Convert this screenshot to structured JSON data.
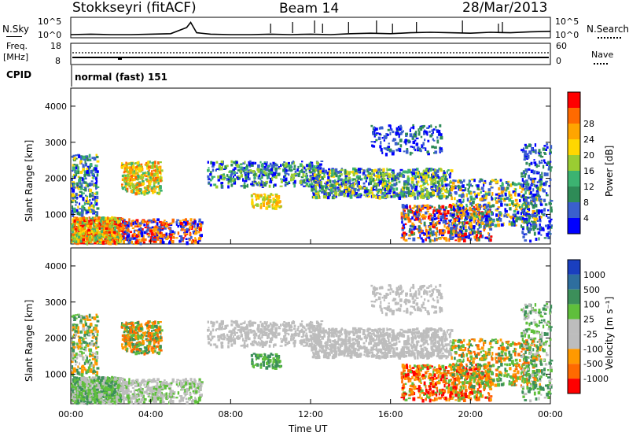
{
  "header": {
    "station": "Stokkseyri (fitACF)",
    "beam": "Beam 14",
    "date": "28/Mar/2013"
  },
  "noise_panel": {
    "left_label": "N.Sky",
    "right_label": "N.Search",
    "left_ticks": [
      "10^5",
      "10^0"
    ],
    "right_ticks": [
      "10^5",
      "10^0"
    ]
  },
  "freq_panel": {
    "left_label_line1": "Freq.",
    "left_label_line2": "[MHz]",
    "left_ticks": [
      "18",
      "8"
    ],
    "right_ticks": [
      "60",
      "0"
    ],
    "right_label": "Nave"
  },
  "cpid_panel": {
    "label": "CPID",
    "mode_text": "normal (fast) 151"
  },
  "x_axis": {
    "title": "Time UT",
    "ticks": [
      "00:00",
      "04:00",
      "08:00",
      "12:00",
      "16:00",
      "20:00",
      "00:00"
    ]
  },
  "colors": {
    "power_scale": [
      "#0000ff",
      "#3a5fcd",
      "#2e8b57",
      "#3cb371",
      "#9acd32",
      "#ffd700",
      "#ffa500",
      "#ff6a00",
      "#ff0000"
    ],
    "velocity_scale": [
      "#1a3fbf",
      "#2e6e9e",
      "#3c8f5a",
      "#5fbf3c",
      "#bdbdbd",
      "#bdbdbd",
      "#ff9900",
      "#ff6a00",
      "#ff0000"
    ]
  },
  "chart_data": [
    {
      "type": "line",
      "panel": "noise",
      "x": [
        0,
        1,
        2,
        3,
        4,
        5,
        5.8,
        6.0,
        6.3,
        7,
        8,
        9,
        10,
        11,
        12,
        13,
        14,
        15,
        16,
        17,
        18,
        19,
        20,
        21,
        22,
        23,
        24
      ],
      "series": [
        {
          "values": [
            1.0,
            1.1,
            1.0,
            1.0,
            1.1,
            1.2,
            2.5,
            3.6,
            1.4,
            1.1,
            1.0,
            1.0,
            1.1,
            1.0,
            1.1,
            1.0,
            1.2,
            1.3,
            1.2,
            1.4,
            1.5,
            1.4,
            1.3,
            1.5,
            1.4,
            1.6,
            1.7
          ]
        }
      ]
    },
    {
      "type": "scatter",
      "panel": "power",
      "ylabel": "Slant Range [km]",
      "yticks": [
        1000,
        2000,
        3000,
        4000
      ],
      "ylim": [
        180,
        4500
      ],
      "xlim": [
        0,
        24
      ],
      "colorbar": {
        "title": "Power [dB]",
        "ticks": [
          "4",
          "8",
          "12",
          "16",
          "20",
          "24",
          "28"
        ]
      }
    },
    {
      "type": "scatter",
      "panel": "velocity",
      "ylabel": "Slant Range [km]",
      "yticks": [
        1000,
        2000,
        3000,
        4000
      ],
      "ylim": [
        180,
        4500
      ],
      "xlim": [
        0,
        24
      ],
      "colorbar": {
        "title": "Velocity [m s⁻¹]",
        "ticks": [
          "1000",
          "500",
          "100",
          "25",
          "-25",
          "-100",
          "-500",
          "-1000"
        ]
      }
    }
  ]
}
